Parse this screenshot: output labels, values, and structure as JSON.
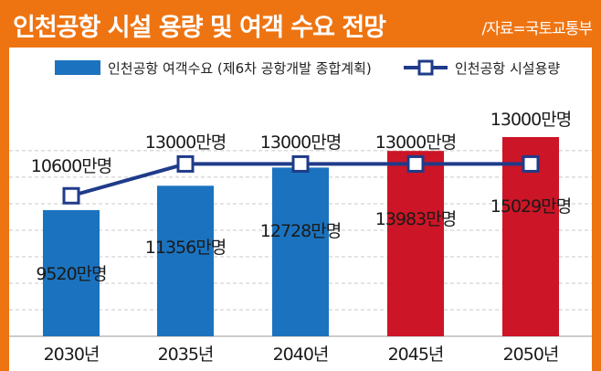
{
  "header": {
    "title": "인천공항 시설 용량 및 여객 수요 전망",
    "source": "/자료=국토교통부"
  },
  "colors": {
    "accent": "#ee7412",
    "bar_blue": "#1b73bf",
    "bar_red": "#cc1526",
    "line": "#1f3b8a"
  },
  "chart_data": {
    "type": "bar",
    "categories": [
      "2030년",
      "2035년",
      "2040년",
      "2045년",
      "2050년"
    ],
    "ylim": [
      0,
      16500
    ],
    "series": [
      {
        "name": "인천공항 여객수요 (제6차 공항개발 종합계획)",
        "type": "bar",
        "values": [
          9520,
          11356,
          12728,
          13983,
          15029
        ],
        "labels": [
          "9520만명",
          "11356만명",
          "12728만명",
          "13983만명",
          "15029만명"
        ],
        "colors": [
          "#1b73bf",
          "#1b73bf",
          "#1b73bf",
          "#cc1526",
          "#cc1526"
        ]
      },
      {
        "name": "인천공항 시설용량",
        "type": "line",
        "values": [
          10600,
          13000,
          13000,
          13000,
          13000
        ],
        "labels": [
          "10600만명",
          "13000만명",
          "13000만명",
          "13000만명",
          "13000만명"
        ]
      }
    ]
  }
}
